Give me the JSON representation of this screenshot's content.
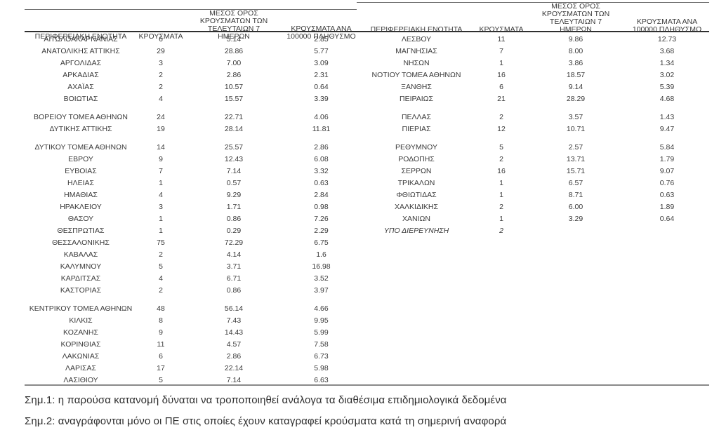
{
  "colors": {
    "text": "#3a3a3a",
    "top_border": "#6e6e6e",
    "header_underline": "#2f2f2f",
    "bottom_border": "#8a8a8a",
    "note_text": "#2e2e2e",
    "background": "#ffffff"
  },
  "columns": {
    "region": "ΠΕΡΙΦΕΡΕΙΑΚΗ ΕΝΟΤΗΤΑ",
    "cases": "ΚΡΟΥΣΜΑΤΑ",
    "avg7": "ΜΕΣΟΣ ΟΡΟΣ ΚΡΟΥΣΜΑΤΩΝ ΤΩΝ ΤΕΛΕΥΤΑΙΩΝ 7 ΗΜΕΡΩΝ",
    "per100k": "ΚΡΟΥΣΜΑΤΑ ΑΝΑ 100000 ΠΛΗΘΥΣΜΟ"
  },
  "left_table": {
    "sections": [
      {
        "rows": [
          {
            "region": "ΑΙΤΩΛΟΑΚΑΡΝΑΝΙΑΣ",
            "cases": "6",
            "avg7": "5.14",
            "per100k": "2.85"
          },
          {
            "region": "ΑΝΑΤΟΛΙΚΗΣ ΑΤΤΙΚΗΣ",
            "cases": "29",
            "avg7": "28.86",
            "per100k": "5.77"
          },
          {
            "region": "ΑΡΓΟΛΙΔΑΣ",
            "cases": "3",
            "avg7": "7.00",
            "per100k": "3.09"
          },
          {
            "region": "ΑΡΚΑΔΙΑΣ",
            "cases": "2",
            "avg7": "2.86",
            "per100k": "2.31"
          },
          {
            "region": "ΑΧΑΪΑΣ",
            "cases": "2",
            "avg7": "10.57",
            "per100k": "0.64"
          },
          {
            "region": "ΒΟΙΩΤΙΑΣ",
            "cases": "4",
            "avg7": "15.57",
            "per100k": "3.39"
          }
        ]
      },
      {
        "rows": [
          {
            "region": "ΒΟΡΕΙΟΥ ΤΟΜΕΑ ΑΘΗΝΩΝ",
            "cases": "24",
            "avg7": "22.71",
            "per100k": "4.06"
          },
          {
            "region": "ΔΥΤΙΚΗΣ ΑΤΤΙΚΗΣ",
            "cases": "19",
            "avg7": "28.14",
            "per100k": "11.81"
          }
        ]
      },
      {
        "rows": [
          {
            "region": "ΔΥΤΙΚΟΥ ΤΟΜΕΑ ΑΘΗΝΩΝ",
            "cases": "14",
            "avg7": "25.57",
            "per100k": "2.86"
          },
          {
            "region": "ΕΒΡΟΥ",
            "cases": "9",
            "avg7": "12.43",
            "per100k": "6.08"
          },
          {
            "region": "ΕΥΒΟΙΑΣ",
            "cases": "7",
            "avg7": "7.14",
            "per100k": "3.32"
          },
          {
            "region": "ΗΛΕΙΑΣ",
            "cases": "1",
            "avg7": "0.57",
            "per100k": "0.63"
          },
          {
            "region": "ΗΜΑΘΙΑΣ",
            "cases": "4",
            "avg7": "9.29",
            "per100k": "2.84"
          },
          {
            "region": "ΗΡΑΚΛΕΙΟΥ",
            "cases": "3",
            "avg7": "1.71",
            "per100k": "0.98"
          },
          {
            "region": "ΘΑΣΟΥ",
            "cases": "1",
            "avg7": "0.86",
            "per100k": "7.26"
          },
          {
            "region": "ΘΕΣΠΡΩΤΙΑΣ",
            "cases": "1",
            "avg7": "0.29",
            "per100k": "2.29"
          },
          {
            "region": "ΘΕΣΣΑΛΟΝΙΚΗΣ",
            "cases": "75",
            "avg7": "72.29",
            "per100k": "6.75"
          },
          {
            "region": "ΚΑΒΑΛΑΣ",
            "cases": "2",
            "avg7": "4.14",
            "per100k": "1.6"
          },
          {
            "region": "ΚΑΛΥΜΝΟΥ",
            "cases": "5",
            "avg7": "3.71",
            "per100k": "16.98"
          },
          {
            "region": "ΚΑΡΔΙΤΣΑΣ",
            "cases": "4",
            "avg7": "6.71",
            "per100k": "3.52"
          },
          {
            "region": "ΚΑΣΤΟΡΙΑΣ",
            "cases": "2",
            "avg7": "0.86",
            "per100k": "3.97"
          }
        ]
      },
      {
        "rows": [
          {
            "region": "ΚΕΝΤΡΙΚΟΥ ΤΟΜΕΑ ΑΘΗΝΩΝ",
            "cases": "48",
            "avg7": "56.14",
            "per100k": "4.66"
          },
          {
            "region": "ΚΙΛΚΙΣ",
            "cases": "8",
            "avg7": "7.43",
            "per100k": "9.95"
          },
          {
            "region": "ΚΟΖΑΝΗΣ",
            "cases": "9",
            "avg7": "14.43",
            "per100k": "5.99"
          },
          {
            "region": "ΚΟΡΙΝΘΙΑΣ",
            "cases": "11",
            "avg7": "4.57",
            "per100k": "7.58"
          },
          {
            "region": "ΛΑΚΩΝΙΑΣ",
            "cases": "6",
            "avg7": "2.86",
            "per100k": "6.73"
          },
          {
            "region": "ΛΑΡΙΣΑΣ",
            "cases": "17",
            "avg7": "22.14",
            "per100k": "5.98"
          },
          {
            "region": "ΛΑΣΙΘΙΟΥ",
            "cases": "5",
            "avg7": "7.14",
            "per100k": "6.63"
          }
        ]
      }
    ]
  },
  "right_table": {
    "sections": [
      {
        "rows": [
          {
            "region": "ΛΕΣΒΟΥ",
            "cases": "11",
            "avg7": "9.86",
            "per100k": "12.73"
          },
          {
            "region": "ΜΑΓΝΗΣΙΑΣ",
            "cases": "7",
            "avg7": "8.00",
            "per100k": "3.68"
          },
          {
            "region": "ΝΗΣΩΝ",
            "cases": "1",
            "avg7": "3.86",
            "per100k": "1.34"
          },
          {
            "region": "ΝΟΤΙΟΥ ΤΟΜΕΑ ΑΘΗΝΩΝ",
            "cases": "16",
            "avg7": "18.57",
            "per100k": "3.02"
          },
          {
            "region": "ΞΑΝΘΗΣ",
            "cases": "6",
            "avg7": "9.14",
            "per100k": "5.39"
          },
          {
            "region": "ΠΕΙΡΑΙΩΣ",
            "cases": "21",
            "avg7": "28.29",
            "per100k": "4.68"
          }
        ]
      },
      {
        "rows": [
          {
            "region": "ΠΕΛΛΑΣ",
            "cases": "2",
            "avg7": "3.57",
            "per100k": "1.43"
          },
          {
            "region": "ΠΙΕΡΙΑΣ",
            "cases": "12",
            "avg7": "10.71",
            "per100k": "9.47"
          }
        ]
      },
      {
        "rows": [
          {
            "region": "ΡΕΘΥΜΝΟΥ",
            "cases": "5",
            "avg7": "2.57",
            "per100k": "5.84"
          },
          {
            "region": "ΡΟΔΟΠΗΣ",
            "cases": "2",
            "avg7": "13.71",
            "per100k": "1.79"
          },
          {
            "region": "ΣΕΡΡΩΝ",
            "cases": "16",
            "avg7": "15.71",
            "per100k": "9.07"
          },
          {
            "region": "ΤΡΙΚΑΛΩΝ",
            "cases": "1",
            "avg7": "6.57",
            "per100k": "0.76"
          },
          {
            "region": "ΦΘΙΩΤΙΔΑΣ",
            "cases": "1",
            "avg7": "8.71",
            "per100k": "0.63"
          },
          {
            "region": "ΧΑΛΚΙΔΙΚΗΣ",
            "cases": "2",
            "avg7": "6.00",
            "per100k": "1.89"
          },
          {
            "region": "ΧΑΝΙΩΝ",
            "cases": "1",
            "avg7": "3.29",
            "per100k": "0.64"
          },
          {
            "region": "ΥΠΟ ΔΙΕΡΕΥΝΗΣΗ",
            "cases": "2",
            "avg7": "",
            "per100k": "",
            "italic": true
          }
        ]
      }
    ]
  },
  "notes": [
    "Σημ.1: η παρούσα κατανομή δύναται να τροποποιηθεί ανάλογα τα διαθέσιμα επιδημιολογικά δεδομένα",
    "Σημ.2: αναγράφονται μόνο οι ΠΕ στις οποίες έχουν καταγραφεί κρούσματα κατά τη σημερινή αναφορά"
  ]
}
